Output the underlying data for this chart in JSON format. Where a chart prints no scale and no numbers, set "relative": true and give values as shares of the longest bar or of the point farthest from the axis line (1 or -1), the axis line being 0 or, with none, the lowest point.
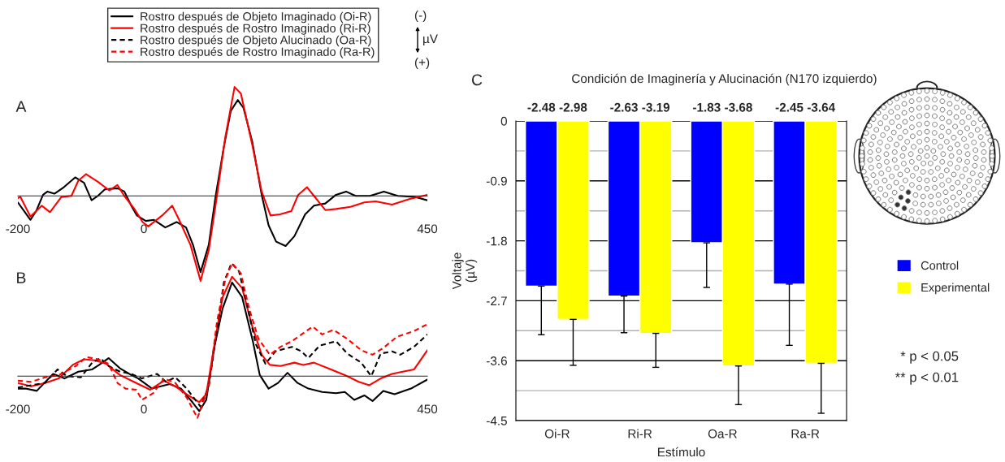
{
  "chart_data": [
    {
      "type": "line",
      "title": "A",
      "relative": true,
      "xlim": [
        -200,
        450
      ],
      "xticks": [
        -200,
        0,
        450
      ],
      "legend": false,
      "series": [
        {
          "color": "#000000",
          "line_style": "solid",
          "x": [
            -200,
            -180,
            -171,
            -160,
            -153,
            -142,
            -127,
            -109,
            -95,
            -83,
            -73,
            -62,
            -42,
            -31,
            -20,
            -11,
            3,
            16,
            34,
            52,
            67,
            78,
            90,
            103,
            114,
            127,
            138,
            149,
            158,
            172,
            187,
            198,
            210,
            225,
            239,
            256,
            270,
            288,
            305,
            321,
            336,
            359,
            381,
            403,
            430,
            450
          ],
          "values": [
            -0.06,
            -0.22,
            -0.14,
            0.01,
            0.04,
            0.02,
            0.08,
            0.17,
            0.12,
            -0.04,
            0.0,
            0.06,
            0.07,
            0.04,
            -0.09,
            -0.18,
            -0.23,
            -0.22,
            -0.29,
            -0.24,
            -0.29,
            -0.45,
            -0.7,
            -0.45,
            0.0,
            0.45,
            0.78,
            0.88,
            0.81,
            0.5,
            0.01,
            -0.27,
            -0.42,
            -0.46,
            -0.37,
            -0.17,
            -0.09,
            -0.07,
            0.01,
            0.04,
            0.0,
            0.0,
            0.04,
            0.0,
            -0.01,
            -0.04
          ]
        },
        {
          "color": "#ff0000",
          "line_style": "solid",
          "x": [
            -200,
            -196,
            -180,
            -162,
            -149,
            -131,
            -115,
            -104,
            -92,
            -73,
            -55,
            -42,
            -31,
            -15,
            -2,
            7,
            29,
            45,
            56,
            74,
            90,
            103,
            116,
            129,
            144,
            154,
            172,
            187,
            201,
            216,
            234,
            245,
            259,
            270,
            288,
            305,
            328,
            350,
            368,
            394,
            421,
            450
          ],
          "values": [
            -0.02,
            -0.01,
            -0.19,
            -0.09,
            -0.15,
            -0.01,
            0.0,
            0.14,
            0.2,
            0.13,
            0.05,
            0.1,
            0.0,
            -0.12,
            -0.24,
            -0.28,
            -0.18,
            -0.09,
            -0.22,
            -0.45,
            -0.78,
            -0.5,
            0.0,
            0.53,
            1.0,
            0.94,
            0.47,
            0.04,
            -0.18,
            -0.17,
            -0.14,
            0.01,
            0.08,
            0.0,
            -0.13,
            -0.12,
            -0.1,
            -0.06,
            -0.05,
            -0.08,
            -0.03,
            0.01
          ]
        }
      ]
    },
    {
      "type": "line",
      "title": "B",
      "relative": true,
      "xlim": [
        -200,
        450
      ],
      "xticks": [
        -200,
        0,
        450
      ],
      "legend": "top",
      "annotations": [
        "(-)",
        "µV",
        "(+)"
      ],
      "series": [
        {
          "name": "Rostro después de Objeto Imaginado (Oi-R)",
          "color": "#000000",
          "line_style": "solid",
          "x": [
            -200,
            -188,
            -170,
            -144,
            -126,
            -104,
            -82,
            -71,
            -56,
            -38,
            -20,
            -9,
            13,
            41,
            59,
            77,
            88,
            99,
            112,
            125,
            140,
            156,
            173,
            184,
            198,
            213,
            228,
            244,
            261,
            283,
            305,
            319,
            334,
            350,
            363,
            380,
            398,
            424,
            450
          ],
          "values": [
            -0.11,
            -0.11,
            -0.13,
            0.02,
            -0.02,
            0.04,
            0.06,
            0.1,
            0.16,
            0.07,
            0.01,
            -0.02,
            -0.11,
            -0.07,
            -0.11,
            -0.23,
            -0.31,
            -0.21,
            0.26,
            0.6,
            0.83,
            0.7,
            0.31,
            0.01,
            -0.11,
            -0.06,
            0.03,
            -0.06,
            -0.11,
            -0.14,
            -0.15,
            -0.14,
            -0.21,
            -0.17,
            -0.22,
            -0.13,
            -0.16,
            -0.11,
            -0.03
          ]
        },
        {
          "name": "Rostro después de Rostro Imaginado (Ri-R)",
          "color": "#ff0000",
          "line_style": "solid",
          "x": [
            -200,
            -179,
            -157,
            -135,
            -113,
            -95,
            -78,
            -60,
            -38,
            -16,
            10,
            32,
            50,
            68,
            88,
            99,
            112,
            125,
            140,
            156,
            171,
            187,
            200,
            217,
            239,
            253,
            270,
            297,
            319,
            341,
            358,
            376,
            394,
            411,
            429,
            450
          ],
          "values": [
            -0.06,
            -0.09,
            -0.06,
            -0.02,
            0.1,
            0.15,
            0.14,
            0.11,
            0.01,
            -0.05,
            -0.12,
            -0.04,
            -0.09,
            -0.16,
            -0.23,
            -0.16,
            0.28,
            0.7,
            0.88,
            0.78,
            0.46,
            0.19,
            0.1,
            0.09,
            0.12,
            0.1,
            0.12,
            0.06,
            0.01,
            -0.05,
            -0.08,
            -0.02,
            0.02,
            0.04,
            0.06,
            0.23
          ]
        },
        {
          "name": "Rostro después de Objeto Alucinado (Oa-R)",
          "color": "#000000",
          "line_style": "dashed",
          "x": [
            -200,
            -179,
            -157,
            -137,
            -122,
            -100,
            -82,
            -69,
            -56,
            -38,
            -20,
            -3,
            21,
            35,
            50,
            68,
            90,
            103,
            116,
            127,
            139,
            151,
            165,
            178,
            193,
            209,
            235,
            250,
            261,
            279,
            305,
            323,
            345,
            361,
            376,
            394,
            407,
            429,
            450
          ],
          "values": [
            -0.1,
            -0.08,
            -0.06,
            0.06,
            0.0,
            -0.01,
            0.12,
            0.16,
            0.09,
            0.04,
            0.02,
            -0.02,
            0.02,
            -0.05,
            -0.01,
            -0.11,
            -0.27,
            -0.09,
            0.41,
            0.83,
            1.0,
            0.93,
            0.6,
            0.28,
            0.11,
            0.22,
            0.26,
            0.22,
            0.16,
            0.27,
            0.31,
            0.2,
            0.12,
            0.0,
            0.2,
            0.22,
            0.19,
            0.26,
            0.37
          ]
        },
        {
          "name": "Rostro después de Rostro Imaginado (Ra-R)",
          "color": "#ff0000",
          "line_style": "dashed",
          "x": [
            -200,
            -179,
            -157,
            -135,
            -108,
            -91,
            -73,
            -56,
            -42,
            -29,
            -12,
            -3,
            15,
            32,
            50,
            68,
            85,
            103,
            116,
            129,
            140,
            154,
            167,
            182,
            200,
            217,
            235,
            253,
            268,
            283,
            301,
            323,
            345,
            363,
            380,
            402,
            429,
            450
          ],
          "values": [
            -0.04,
            -0.05,
            -0.01,
            0.01,
            0.09,
            0.17,
            0.15,
            0.11,
            -0.06,
            -0.11,
            -0.12,
            -0.21,
            -0.15,
            -0.02,
            -0.06,
            -0.19,
            -0.37,
            -0.09,
            0.48,
            0.85,
            1.0,
            0.91,
            0.6,
            0.33,
            0.19,
            0.26,
            0.31,
            0.38,
            0.44,
            0.37,
            0.41,
            0.33,
            0.23,
            0.19,
            0.25,
            0.35,
            0.4,
            0.46
          ]
        }
      ]
    },
    {
      "type": "bar",
      "title": "C",
      "subtitle": "Condición de Imaginería y Alucinación (N170 izquierdo)",
      "xlabel": "Estímulo",
      "ylabel": "Voltaje\n(µV)",
      "annotations": [
        "* p < 0.05",
        "** p < 0.01"
      ],
      "categories": [
        "Oi-R",
        "Ri-R",
        "Oa-R",
        "Ra-R"
      ],
      "series": [
        {
          "name": "Control",
          "color": "#0000ff",
          "values": [
            -2.48,
            -2.63,
            -1.83,
            -2.45
          ],
          "errors": [
            [
              -3.21,
              -2.48
            ],
            [
              -3.18,
              -2.63
            ],
            [
              -2.5,
              -1.83
            ],
            [
              -3.37,
              -2.45
            ]
          ],
          "value_labels": [
            "-2.48",
            "-2.63",
            "-1.83",
            "-2.45"
          ]
        },
        {
          "name": "Experimental",
          "color": "#ffff00",
          "values": [
            -2.98,
            -3.19,
            -3.68,
            -3.64
          ],
          "errors": [
            [
              -3.67,
              -2.98
            ],
            [
              -3.7,
              -3.19
            ],
            [
              -4.26,
              -3.68
            ],
            [
              -4.39,
              -3.64
            ]
          ],
          "value_labels": [
            "-2.98",
            "-3.19",
            "-3.68",
            "-3.64"
          ]
        }
      ],
      "ylim": [
        -4.5,
        0
      ],
      "yticks": [
        0,
        {
          "value": -0.45,
          "label": null
        },
        -0.9,
        {
          "value": -1.35,
          "label": null
        },
        -1.8,
        {
          "value": -2.25,
          "label": null
        },
        -2.7,
        {
          "value": -3.15,
          "label": null
        },
        -3.6,
        {
          "value": -4.05,
          "label": null
        },
        -4.5
      ],
      "grid": "y",
      "legend": "right"
    }
  ]
}
